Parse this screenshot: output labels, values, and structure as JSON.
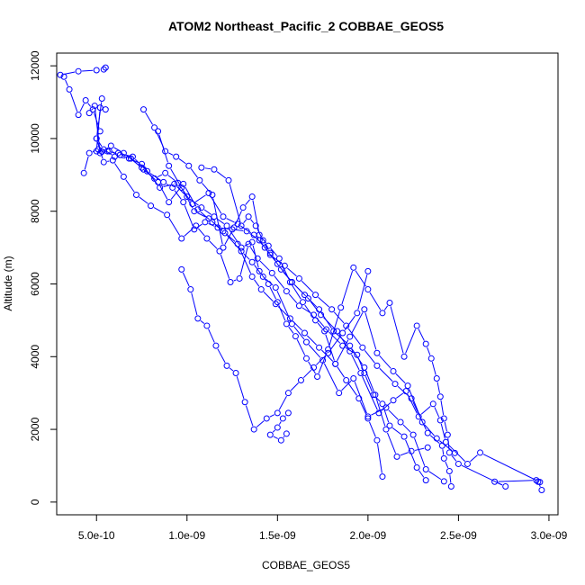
{
  "chart_data": {
    "type": "line",
    "title": "ATOM2 Northeast_Pacific_2 COBBAE_GEOS5",
    "xlabel": "COBBAE_GEOS5",
    "ylabel": "Altitude (m)",
    "xlim": [
      2.8e-10,
      3.05e-09
    ],
    "ylim": [
      -350,
      12350
    ],
    "xticks": [
      5e-10,
      1e-09,
      1.5e-09,
      2e-09,
      2.5e-09,
      3e-09
    ],
    "xtick_labels": [
      "5.0e-10",
      "1.0e-09",
      "1.5e-09",
      "2.0e-09",
      "2.5e-09",
      "3.0e-09"
    ],
    "yticks": [
      0,
      2000,
      4000,
      6000,
      8000,
      10000,
      12000
    ],
    "ytick_labels": [
      "0",
      "2000",
      "4000",
      "6000",
      "8000",
      "10000",
      "12000"
    ],
    "grid": false,
    "legend": "none",
    "color": "#0000ff",
    "marker": "open-circle",
    "series": [
      {
        "x": [
          2.96e-09,
          2.94e-09,
          2.93e-09,
          2.7e-09,
          2.76e-09,
          2.5e-09,
          2.45e-09,
          2.44e-09,
          2.42e-09,
          2.4e-09,
          2.38e-09,
          2.35e-09,
          2.32e-09,
          2.27e-09,
          2.2e-09,
          2.12e-09,
          2.08e-09,
          2e-09,
          1.92e-09,
          1.85e-09,
          1.78e-09,
          1.72e-09,
          1.66e-09,
          1.6e-09,
          1.55e-09,
          1.5e-09,
          1.45e-09,
          1.4e-09,
          1.36e-09,
          1.3e-09,
          1.22e-09,
          1.15e-09,
          1.08e-09,
          1e-09,
          9.3e-10,
          8.5e-10,
          7.5e-10,
          6.8e-10,
          6e-10,
          5.4e-10,
          5e-10,
          5.2e-10,
          4.8e-10,
          4.4e-10,
          4e-10,
          3.5e-10,
          3.2e-10,
          3e-10,
          4e-10,
          5e-10,
          5.4e-10,
          5.5e-10
        ],
        "y": [
          330,
          560,
          600,
          560,
          430,
          1050,
          1360,
          1850,
          2300,
          2900,
          3400,
          3950,
          4350,
          4850,
          4000,
          5480,
          5200,
          5850,
          6450,
          5350,
          4200,
          3450,
          3950,
          4560,
          4900,
          5500,
          6000,
          6350,
          7150,
          7000,
          7600,
          7850,
          8100,
          8400,
          8750,
          8650,
          9300,
          9450,
          9500,
          9700,
          10000,
          10200,
          10800,
          11050,
          10650,
          11350,
          11700,
          11750,
          11850,
          11880,
          11900,
          11950
        ]
      },
      {
        "x": [
          2.95e-09,
          2.62e-09,
          2.55e-09,
          2.43e-09,
          2.4e-09,
          2.36e-09,
          2.28e-09,
          2.21e-09,
          2.14e-09,
          2.06e-09,
          1.96e-09,
          1.9e-09,
          1.83e-09,
          1.74e-09,
          1.67e-09,
          1.58e-09,
          1.5e-09,
          1.43e-09,
          1.37e-09,
          1.28e-09,
          1.2e-09,
          1.12e-09,
          1.03e-09,
          9.5e-10,
          8.8e-10,
          8.2e-10,
          7.5e-10,
          6.5e-10,
          5.8e-10,
          5.3e-10,
          5e-10,
          5.2e-10,
          5.5e-10
        ],
        "y": [
          550,
          1360,
          1050,
          1650,
          2250,
          2700,
          2350,
          3050,
          2800,
          2450,
          3550,
          4150,
          4700,
          5150,
          5600,
          6050,
          6550,
          7000,
          7350,
          7650,
          7850,
          8500,
          8200,
          8780,
          9050,
          8900,
          9200,
          9600,
          9800,
          9640,
          9650,
          10850,
          10800
        ]
      },
      {
        "x": [
          2.46e-09,
          2.45e-09,
          2.42e-09,
          2.41e-09,
          2.33e-09,
          2.24e-09,
          2.15e-09,
          2.05e-09,
          1.97e-09,
          1.88e-09,
          1.8e-09,
          1.71e-09,
          1.62e-09,
          1.54e-09,
          1.46e-09,
          1.4e-09,
          1.33e-09,
          1.25e-09,
          1.17e-09,
          1.1e-09,
          1.04e-09,
          9.8e-10,
          9.2e-10,
          8.7e-10,
          7.8e-10,
          7e-10,
          6.2e-10,
          5.6e-10,
          5.1e-10,
          4.6e-10,
          4.3e-10
        ],
        "y": [
          430,
          850,
          1200,
          1550,
          1900,
          2850,
          3250,
          3750,
          4250,
          4850,
          5300,
          5700,
          6150,
          6500,
          6800,
          7200,
          7450,
          7500,
          7550,
          7700,
          7500,
          8250,
          8650,
          8800,
          9100,
          9500,
          9600,
          9650,
          9700,
          9600,
          9050
        ]
      },
      {
        "x": [
          2.42e-09,
          2.32e-09,
          2.25e-09,
          2.18e-09,
          2.1e-09,
          2e-09,
          1.92e-09,
          1.84e-09,
          1.75e-09,
          1.66e-09,
          1.58e-09,
          1.49e-09,
          1.42e-09,
          1.36e-09,
          1.3e-09,
          1.21e-09,
          1.14e-09,
          1.06e-09,
          9.8e-10,
          9e-10,
          8.4e-10,
          7.6e-10,
          6.9e-10,
          6.3e-10,
          5.7e-10,
          5.2e-10,
          4.9e-10,
          4.6e-10
        ],
        "y": [
          570,
          900,
          1850,
          2200,
          2600,
          2350,
          3400,
          3000,
          3900,
          4400,
          4900,
          5900,
          6200,
          6600,
          6900,
          7400,
          7700,
          8050,
          8750,
          8250,
          8800,
          9150,
          9450,
          9550,
          9650,
          9600,
          10900,
          10700
        ]
      },
      {
        "x": [
          2.32e-09,
          2.27e-09,
          2.2e-09,
          2.12e-09,
          2.08e-09,
          2.03e-09,
          1.98e-09,
          1.94e-09,
          1.86e-09,
          1.77e-09,
          1.7e-09,
          1.62e-09,
          1.55e-09,
          1.47e-09,
          1.39e-09,
          1.34e-09,
          1.29e-09,
          1.24e-09,
          1.18e-09,
          1.11e-09,
          1.05e-09,
          9.7e-10,
          8.9e-10,
          8e-10,
          7.2e-10,
          6.5e-10,
          5.9e-10,
          5.4e-10,
          5e-10,
          5.3e-10
        ],
        "y": [
          600,
          950,
          1800,
          2100,
          2700,
          2950,
          3550,
          4050,
          4300,
          4750,
          5150,
          5400,
          5800,
          6300,
          6700,
          7100,
          6150,
          6050,
          6900,
          7250,
          7600,
          7250,
          7900,
          8150,
          8450,
          8950,
          9400,
          9350,
          10000,
          11100
        ]
      },
      {
        "x": [
          2.08e-09,
          2.05e-09,
          2e-09,
          1.95e-09,
          1.88e-09,
          1.82e-09,
          1.76e-09,
          1.71e-09,
          1.64e-09,
          1.57e-09,
          1.51e-09,
          1.45e-09,
          1.4e-09,
          1.36e-09,
          1.31e-09,
          1.26e-09,
          1.2e-09,
          1.14e-09,
          1.07e-09,
          1.01e-09,
          9.4e-10,
          8.8e-10,
          8.2e-10,
          7.6e-10
        ],
        "y": [
          700,
          1700,
          2300,
          2850,
          3350,
          3800,
          4700,
          5000,
          5500,
          6050,
          6700,
          7050,
          7350,
          8400,
          8100,
          7550,
          7000,
          8450,
          8850,
          9250,
          9500,
          9650,
          10300,
          10800
        ]
      },
      {
        "x": [
          2e-09,
          1.94e-09,
          1.86e-09,
          1.78e-09,
          1.7e-09,
          1.63e-09,
          1.56e-09,
          1.5e-09,
          1.44e-09,
          1.37e-09,
          1.32e-09,
          1.27e-09,
          1.22e-09,
          1.16e-09,
          1.11e-09,
          1.06e-09,
          1.02e-09,
          9.7e-10
        ],
        "y": [
          6350,
          5200,
          4650,
          4100,
          3700,
          3350,
          3000,
          2450,
          2300,
          2000,
          2750,
          3550,
          3750,
          4300,
          4850,
          5050,
          5850,
          6400
        ]
      },
      {
        "x": [
          1.56e-09,
          1.53e-09,
          1.5e-09,
          1.46e-09,
          1.52e-09,
          1.55e-09
        ],
        "y": [
          2450,
          2300,
          2050,
          1850,
          1700,
          1880
        ]
      },
      {
        "x": [
          2.48e-09,
          2.38e-09,
          2.3e-09,
          2.22e-09,
          2.14e-09,
          2.05e-09,
          1.98e-09,
          1.9e-09,
          1.82e-09,
          1.73e-09,
          1.65e-09,
          1.57e-09,
          1.49e-09,
          1.41e-09,
          1.36e-09,
          1.28e-09,
          1.2e-09,
          1.12e-09,
          1.04e-09,
          9.7e-10,
          9e-10,
          8.4e-10
        ],
        "y": [
          1350,
          1750,
          2200,
          3200,
          3600,
          4100,
          5300,
          4550,
          3800,
          4250,
          4650,
          5050,
          5450,
          5850,
          6200,
          7100,
          7450,
          7800,
          8000,
          8650,
          9250,
          10200
        ]
      },
      {
        "x": [
          2.33e-09,
          2.24e-09,
          2.16e-09,
          2.1e-09,
          2.04e-09,
          1.98e-09,
          1.9e-09,
          1.81e-09,
          1.73e-09,
          1.65e-09,
          1.58e-09,
          1.52e-09,
          1.46e-09,
          1.42e-09,
          1.38e-09,
          1.34e-09,
          1.3e-09,
          1.23e-09,
          1.15e-09,
          1.08e-09
        ],
        "y": [
          1500,
          1400,
          1250,
          2000,
          2950,
          3700,
          4300,
          4700,
          5300,
          5700,
          6050,
          6400,
          6850,
          7200,
          7600,
          7850,
          7600,
          8850,
          9150,
          9200
        ]
      }
    ]
  }
}
